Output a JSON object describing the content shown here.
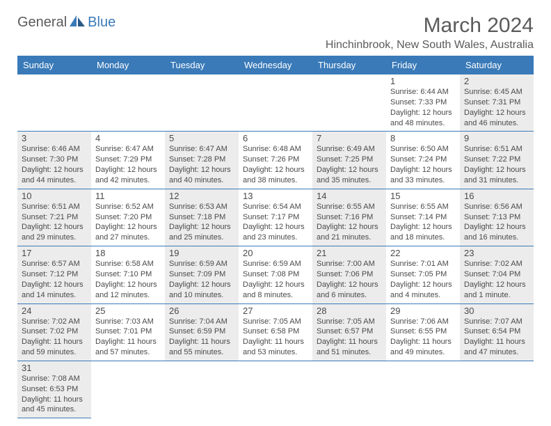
{
  "logo": {
    "text1": "General",
    "text2": "Blue"
  },
  "header": {
    "title": "March 2024",
    "location": "Hinchinbrook, New South Wales, Australia"
  },
  "colors": {
    "header_bg": "#3a7ab8",
    "header_text": "#ffffff",
    "text": "#4a4a4a",
    "title_text": "#5a5a5a",
    "shaded_bg": "#ececec",
    "border": "#3a7ab8"
  },
  "dayNames": [
    "Sunday",
    "Monday",
    "Tuesday",
    "Wednesday",
    "Thursday",
    "Friday",
    "Saturday"
  ],
  "weeks": [
    [
      null,
      null,
      null,
      null,
      null,
      {
        "num": "1",
        "sunrise": "Sunrise: 6:44 AM",
        "sunset": "Sunset: 7:33 PM",
        "daylight": "Daylight: 12 hours and 48 minutes."
      },
      {
        "num": "2",
        "sunrise": "Sunrise: 6:45 AM",
        "sunset": "Sunset: 7:31 PM",
        "daylight": "Daylight: 12 hours and 46 minutes."
      }
    ],
    [
      {
        "num": "3",
        "sunrise": "Sunrise: 6:46 AM",
        "sunset": "Sunset: 7:30 PM",
        "daylight": "Daylight: 12 hours and 44 minutes."
      },
      {
        "num": "4",
        "sunrise": "Sunrise: 6:47 AM",
        "sunset": "Sunset: 7:29 PM",
        "daylight": "Daylight: 12 hours and 42 minutes."
      },
      {
        "num": "5",
        "sunrise": "Sunrise: 6:47 AM",
        "sunset": "Sunset: 7:28 PM",
        "daylight": "Daylight: 12 hours and 40 minutes."
      },
      {
        "num": "6",
        "sunrise": "Sunrise: 6:48 AM",
        "sunset": "Sunset: 7:26 PM",
        "daylight": "Daylight: 12 hours and 38 minutes."
      },
      {
        "num": "7",
        "sunrise": "Sunrise: 6:49 AM",
        "sunset": "Sunset: 7:25 PM",
        "daylight": "Daylight: 12 hours and 35 minutes."
      },
      {
        "num": "8",
        "sunrise": "Sunrise: 6:50 AM",
        "sunset": "Sunset: 7:24 PM",
        "daylight": "Daylight: 12 hours and 33 minutes."
      },
      {
        "num": "9",
        "sunrise": "Sunrise: 6:51 AM",
        "sunset": "Sunset: 7:22 PM",
        "daylight": "Daylight: 12 hours and 31 minutes."
      }
    ],
    [
      {
        "num": "10",
        "sunrise": "Sunrise: 6:51 AM",
        "sunset": "Sunset: 7:21 PM",
        "daylight": "Daylight: 12 hours and 29 minutes."
      },
      {
        "num": "11",
        "sunrise": "Sunrise: 6:52 AM",
        "sunset": "Sunset: 7:20 PM",
        "daylight": "Daylight: 12 hours and 27 minutes."
      },
      {
        "num": "12",
        "sunrise": "Sunrise: 6:53 AM",
        "sunset": "Sunset: 7:18 PM",
        "daylight": "Daylight: 12 hours and 25 minutes."
      },
      {
        "num": "13",
        "sunrise": "Sunrise: 6:54 AM",
        "sunset": "Sunset: 7:17 PM",
        "daylight": "Daylight: 12 hours and 23 minutes."
      },
      {
        "num": "14",
        "sunrise": "Sunrise: 6:55 AM",
        "sunset": "Sunset: 7:16 PM",
        "daylight": "Daylight: 12 hours and 21 minutes."
      },
      {
        "num": "15",
        "sunrise": "Sunrise: 6:55 AM",
        "sunset": "Sunset: 7:14 PM",
        "daylight": "Daylight: 12 hours and 18 minutes."
      },
      {
        "num": "16",
        "sunrise": "Sunrise: 6:56 AM",
        "sunset": "Sunset: 7:13 PM",
        "daylight": "Daylight: 12 hours and 16 minutes."
      }
    ],
    [
      {
        "num": "17",
        "sunrise": "Sunrise: 6:57 AM",
        "sunset": "Sunset: 7:12 PM",
        "daylight": "Daylight: 12 hours and 14 minutes."
      },
      {
        "num": "18",
        "sunrise": "Sunrise: 6:58 AM",
        "sunset": "Sunset: 7:10 PM",
        "daylight": "Daylight: 12 hours and 12 minutes."
      },
      {
        "num": "19",
        "sunrise": "Sunrise: 6:59 AM",
        "sunset": "Sunset: 7:09 PM",
        "daylight": "Daylight: 12 hours and 10 minutes."
      },
      {
        "num": "20",
        "sunrise": "Sunrise: 6:59 AM",
        "sunset": "Sunset: 7:08 PM",
        "daylight": "Daylight: 12 hours and 8 minutes."
      },
      {
        "num": "21",
        "sunrise": "Sunrise: 7:00 AM",
        "sunset": "Sunset: 7:06 PM",
        "daylight": "Daylight: 12 hours and 6 minutes."
      },
      {
        "num": "22",
        "sunrise": "Sunrise: 7:01 AM",
        "sunset": "Sunset: 7:05 PM",
        "daylight": "Daylight: 12 hours and 4 minutes."
      },
      {
        "num": "23",
        "sunrise": "Sunrise: 7:02 AM",
        "sunset": "Sunset: 7:04 PM",
        "daylight": "Daylight: 12 hours and 1 minute."
      }
    ],
    [
      {
        "num": "24",
        "sunrise": "Sunrise: 7:02 AM",
        "sunset": "Sunset: 7:02 PM",
        "daylight": "Daylight: 11 hours and 59 minutes."
      },
      {
        "num": "25",
        "sunrise": "Sunrise: 7:03 AM",
        "sunset": "Sunset: 7:01 PM",
        "daylight": "Daylight: 11 hours and 57 minutes."
      },
      {
        "num": "26",
        "sunrise": "Sunrise: 7:04 AM",
        "sunset": "Sunset: 6:59 PM",
        "daylight": "Daylight: 11 hours and 55 minutes."
      },
      {
        "num": "27",
        "sunrise": "Sunrise: 7:05 AM",
        "sunset": "Sunset: 6:58 PM",
        "daylight": "Daylight: 11 hours and 53 minutes."
      },
      {
        "num": "28",
        "sunrise": "Sunrise: 7:05 AM",
        "sunset": "Sunset: 6:57 PM",
        "daylight": "Daylight: 11 hours and 51 minutes."
      },
      {
        "num": "29",
        "sunrise": "Sunrise: 7:06 AM",
        "sunset": "Sunset: 6:55 PM",
        "daylight": "Daylight: 11 hours and 49 minutes."
      },
      {
        "num": "30",
        "sunrise": "Sunrise: 7:07 AM",
        "sunset": "Sunset: 6:54 PM",
        "daylight": "Daylight: 11 hours and 47 minutes."
      }
    ],
    [
      {
        "num": "31",
        "sunrise": "Sunrise: 7:08 AM",
        "sunset": "Sunset: 6:53 PM",
        "daylight": "Daylight: 11 hours and 45 minutes."
      },
      null,
      null,
      null,
      null,
      null,
      null
    ]
  ]
}
